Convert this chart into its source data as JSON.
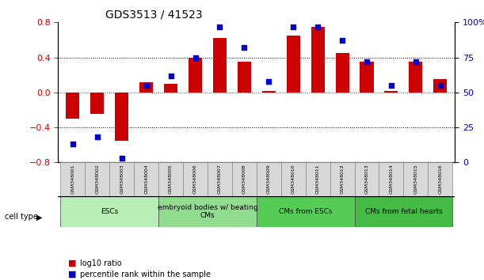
{
  "title": "GDS3513 / 41523",
  "samples": [
    "GSM348001",
    "GSM348002",
    "GSM348003",
    "GSM348004",
    "GSM348005",
    "GSM348006",
    "GSM348007",
    "GSM348008",
    "GSM348009",
    "GSM348010",
    "GSM348011",
    "GSM348012",
    "GSM348013",
    "GSM348014",
    "GSM348015",
    "GSM348016"
  ],
  "log10_ratio": [
    -0.3,
    -0.25,
    -0.55,
    0.12,
    0.1,
    0.4,
    0.62,
    0.35,
    0.02,
    0.65,
    0.75,
    0.45,
    0.35,
    0.02,
    0.35,
    0.15
  ],
  "percentile_rank": [
    13,
    18,
    3,
    55,
    62,
    75,
    97,
    82,
    58,
    97,
    97,
    87,
    72,
    55,
    72,
    55
  ],
  "cell_type_groups": [
    {
      "label": "ESCs",
      "start": 0,
      "end": 3,
      "color": "#90EE90"
    },
    {
      "label": "embryoid bodies w/ beating\nCMs",
      "start": 4,
      "end": 7,
      "color": "#7FDD7F"
    },
    {
      "label": "CMs from ESCs",
      "start": 8,
      "end": 11,
      "color": "#55CC55"
    },
    {
      "label": "CMs from fetal hearts",
      "start": 12,
      "end": 15,
      "color": "#44BB44"
    }
  ],
  "bar_color": "#CC0000",
  "scatter_color": "#0000CC",
  "ylim_left": [
    -0.8,
    0.8
  ],
  "ylim_right": [
    0,
    100
  ],
  "yticks_left": [
    -0.8,
    -0.4,
    0.0,
    0.4,
    0.8
  ],
  "yticks_right": [
    0,
    25,
    50,
    75,
    100
  ],
  "ytick_labels_right": [
    "0",
    "25",
    "50",
    "75",
    "100%"
  ],
  "hlines": [
    0.4,
    0.0,
    -0.4
  ],
  "background_color": "#FFFFFF",
  "legend_log10": "log10 ratio",
  "legend_pct": "percentile rank within the sample"
}
